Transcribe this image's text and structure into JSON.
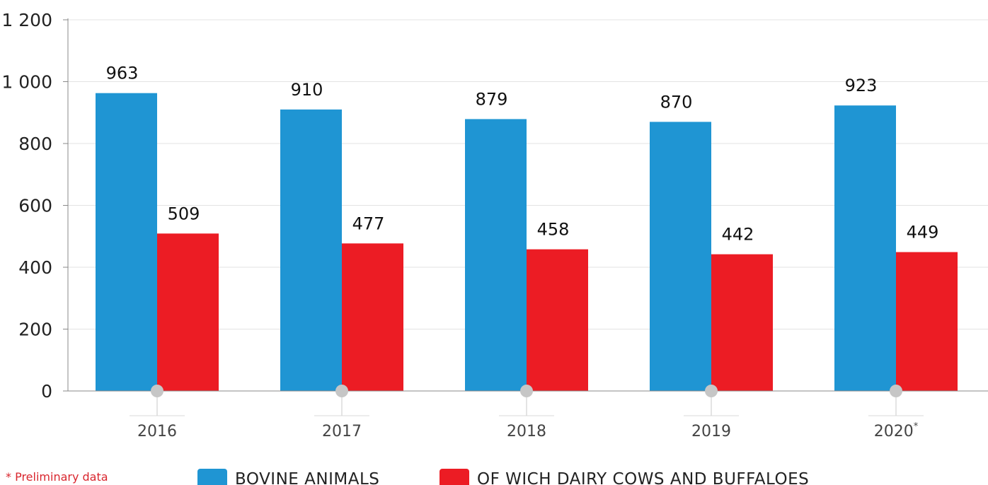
{
  "footnote": "* Preliminary data",
  "colors": {
    "bovine": "#1f95d3",
    "dairy": "#ec1c24",
    "axis": "#888888",
    "grid": "#e3e3e3",
    "text": "#222222"
  },
  "chart_data": {
    "type": "bar",
    "categories": [
      "2016",
      "2017",
      "2018",
      "2019",
      "2020"
    ],
    "category_marks": [
      "",
      "",
      "",
      "",
      "*"
    ],
    "series": [
      {
        "name": "BOVINE ANIMALS",
        "values": [
          963,
          910,
          879,
          870,
          923
        ]
      },
      {
        "name": "OF WICH DAIRY COWS AND BUFFALOES",
        "values": [
          509,
          477,
          458,
          442,
          449
        ]
      }
    ],
    "yticks": [
      "0",
      "200",
      "400",
      "600",
      "800",
      "1 000",
      "1 200"
    ],
    "ytick_values": [
      0,
      200,
      400,
      600,
      800,
      1000,
      1200
    ],
    "ylim": [
      0,
      1200
    ],
    "grid": true,
    "legend_position": "bottom"
  }
}
